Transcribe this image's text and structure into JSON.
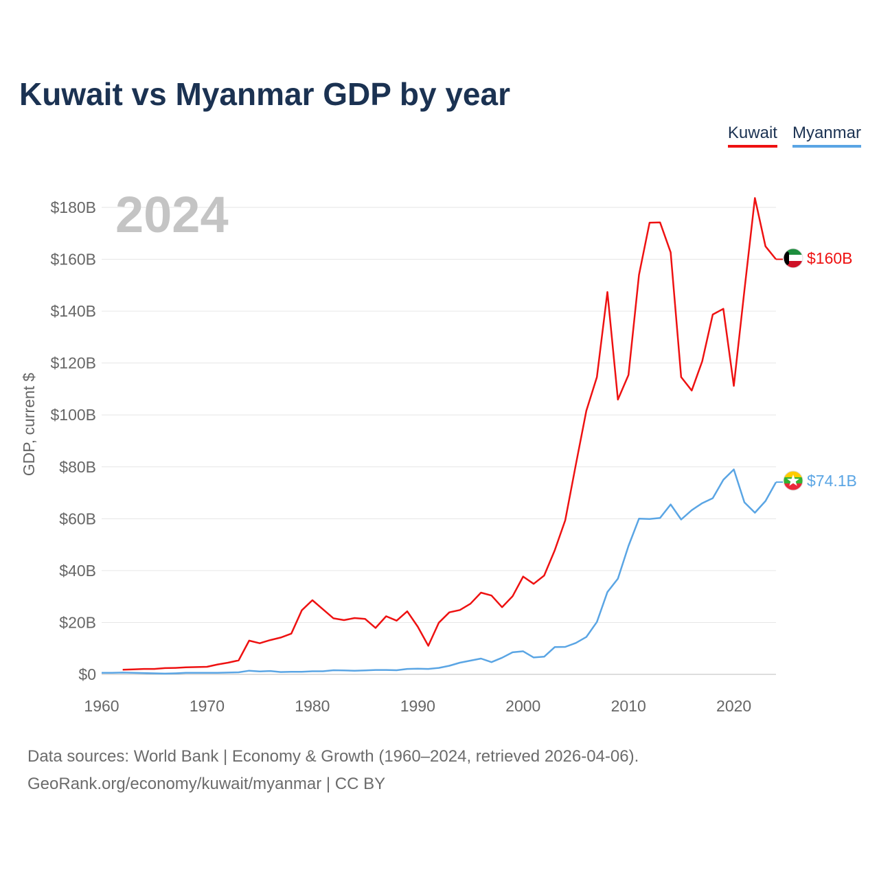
{
  "title": "Kuwait vs Myanmar GDP by year",
  "year_label": "2024",
  "legend": [
    {
      "name": "Kuwait",
      "color": "#ee1111"
    },
    {
      "name": "Myanmar",
      "color": "#5aa5e4"
    }
  ],
  "source_line1": "Data sources: World Bank | Economy & Growth (1960–2024, retrieved 2026-04-06).",
  "source_line2": "GeoRank.org/economy/kuwait/myanmar | CC BY",
  "chart_data": {
    "type": "line",
    "title": "Kuwait vs Myanmar GDP by year",
    "xlabel": "",
    "ylabel": "GDP, current $",
    "xlim": [
      1960,
      2024
    ],
    "ylim": [
      0,
      180
    ],
    "y_unit": "billion USD",
    "grid": true,
    "legend_position": "top-right",
    "x_ticks": [
      1960,
      1970,
      1980,
      1990,
      2000,
      2010,
      2020
    ],
    "x_tick_labels": [
      "1960",
      "1970",
      "1980",
      "1990",
      "2000",
      "2010",
      "2020"
    ],
    "y_ticks": [
      0,
      20,
      40,
      60,
      80,
      100,
      120,
      140,
      160,
      180
    ],
    "y_tick_labels": [
      "$0",
      "$20B",
      "$40B",
      "$60B",
      "$80B",
      "$100B",
      "$120B",
      "$140B",
      "$160B",
      "$180B"
    ],
    "series": [
      {
        "name": "Kuwait",
        "color": "#ee1111",
        "end_label": "$160B",
        "flag": "kuwait",
        "points": [
          [
            1962,
            1.8
          ],
          [
            1963,
            1.9
          ],
          [
            1964,
            2.1
          ],
          [
            1965,
            2.1
          ],
          [
            1966,
            2.4
          ],
          [
            1967,
            2.5
          ],
          [
            1968,
            2.7
          ],
          [
            1969,
            2.8
          ],
          [
            1970,
            2.9
          ],
          [
            1971,
            3.8
          ],
          [
            1972,
            4.5
          ],
          [
            1973,
            5.4
          ],
          [
            1974,
            13.0
          ],
          [
            1975,
            12.0
          ],
          [
            1976,
            13.2
          ],
          [
            1977,
            14.2
          ],
          [
            1978,
            15.7
          ],
          [
            1979,
            24.7
          ],
          [
            1980,
            28.6
          ],
          [
            1981,
            25.1
          ],
          [
            1982,
            21.6
          ],
          [
            1983,
            20.9
          ],
          [
            1984,
            21.7
          ],
          [
            1985,
            21.4
          ],
          [
            1986,
            17.9
          ],
          [
            1987,
            22.4
          ],
          [
            1988,
            20.7
          ],
          [
            1989,
            24.3
          ],
          [
            1990,
            18.4
          ],
          [
            1991,
            11.0
          ],
          [
            1992,
            19.9
          ],
          [
            1993,
            23.9
          ],
          [
            1994,
            24.8
          ],
          [
            1995,
            27.2
          ],
          [
            1996,
            31.5
          ],
          [
            1997,
            30.4
          ],
          [
            1998,
            25.9
          ],
          [
            1999,
            30.1
          ],
          [
            2000,
            37.7
          ],
          [
            2001,
            34.9
          ],
          [
            2002,
            38.1
          ],
          [
            2003,
            47.8
          ],
          [
            2004,
            59.4
          ],
          [
            2005,
            80.8
          ],
          [
            2006,
            101.6
          ],
          [
            2007,
            114.6
          ],
          [
            2008,
            147.4
          ],
          [
            2009,
            105.9
          ],
          [
            2010,
            115.4
          ],
          [
            2011,
            154.0
          ],
          [
            2012,
            174.1
          ],
          [
            2013,
            174.2
          ],
          [
            2014,
            162.7
          ],
          [
            2015,
            114.6
          ],
          [
            2016,
            109.4
          ],
          [
            2017,
            120.7
          ],
          [
            2018,
            138.7
          ],
          [
            2019,
            140.9
          ],
          [
            2020,
            111.2
          ],
          [
            2021,
            148.0
          ],
          [
            2022,
            183.6
          ],
          [
            2023,
            165.0
          ],
          [
            2024,
            160.0
          ]
        ]
      },
      {
        "name": "Myanmar",
        "color": "#5aa5e4",
        "end_label": "$74.1B",
        "flag": "myanmar",
        "points": [
          [
            1960,
            0.6
          ],
          [
            1961,
            0.6
          ],
          [
            1962,
            0.7
          ],
          [
            1963,
            0.6
          ],
          [
            1964,
            0.5
          ],
          [
            1965,
            0.4
          ],
          [
            1966,
            0.3
          ],
          [
            1967,
            0.4
          ],
          [
            1968,
            0.6
          ],
          [
            1969,
            0.6
          ],
          [
            1970,
            0.6
          ],
          [
            1971,
            0.6
          ],
          [
            1972,
            0.7
          ],
          [
            1973,
            0.8
          ],
          [
            1974,
            1.4
          ],
          [
            1975,
            1.1
          ],
          [
            1976,
            1.3
          ],
          [
            1977,
            0.9
          ],
          [
            1978,
            1.0
          ],
          [
            1979,
            1.0
          ],
          [
            1980,
            1.2
          ],
          [
            1981,
            1.2
          ],
          [
            1982,
            1.6
          ],
          [
            1983,
            1.5
          ],
          [
            1984,
            1.4
          ],
          [
            1985,
            1.5
          ],
          [
            1986,
            1.7
          ],
          [
            1987,
            1.7
          ],
          [
            1988,
            1.6
          ],
          [
            1989,
            2.1
          ],
          [
            1990,
            2.2
          ],
          [
            1991,
            2.1
          ],
          [
            1992,
            2.5
          ],
          [
            1993,
            3.3
          ],
          [
            1994,
            4.5
          ],
          [
            1995,
            5.3
          ],
          [
            1996,
            6.1
          ],
          [
            1997,
            4.7
          ],
          [
            1998,
            6.4
          ],
          [
            1999,
            8.5
          ],
          [
            2000,
            8.9
          ],
          [
            2001,
            6.5
          ],
          [
            2002,
            6.8
          ],
          [
            2003,
            10.5
          ],
          [
            2004,
            10.6
          ],
          [
            2005,
            12.1
          ],
          [
            2006,
            14.4
          ],
          [
            2007,
            20.2
          ],
          [
            2008,
            31.7
          ],
          [
            2009,
            36.9
          ],
          [
            2010,
            49.5
          ],
          [
            2011,
            60.0
          ],
          [
            2012,
            59.9
          ],
          [
            2013,
            60.3
          ],
          [
            2014,
            65.5
          ],
          [
            2015,
            59.7
          ],
          [
            2016,
            63.3
          ],
          [
            2017,
            66.0
          ],
          [
            2018,
            67.9
          ],
          [
            2019,
            75.0
          ],
          [
            2020,
            79.0
          ],
          [
            2021,
            66.3
          ],
          [
            2022,
            62.3
          ],
          [
            2023,
            66.8
          ],
          [
            2024,
            74.1
          ]
        ]
      }
    ]
  }
}
